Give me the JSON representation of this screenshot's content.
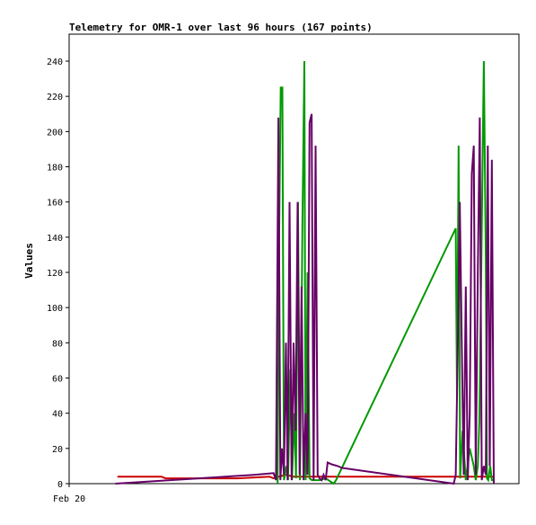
{
  "chart_data": {
    "type": "line",
    "title": "Telemetry for OMR-1 over last 96 hours (167 points)",
    "xlabel": "",
    "ylabel": "Values",
    "ylim": [
      0,
      255
    ],
    "xlim": [
      0,
      100
    ],
    "yticks": [
      0,
      20,
      40,
      60,
      80,
      100,
      120,
      140,
      160,
      180,
      200,
      220,
      240
    ],
    "xtick_labels": [
      {
        "x": 0,
        "label": "Feb 20"
      }
    ],
    "grid": false,
    "legend": "none",
    "series": [
      {
        "color": "#cc0000",
        "x": [
          6,
          17,
          18,
          36,
          44,
          45,
          48,
          50,
          52,
          55,
          62,
          70,
          80,
          85,
          90,
          95,
          100
        ],
        "y": [
          4,
          4,
          3,
          3,
          4,
          3,
          5,
          4,
          4,
          4,
          4,
          4,
          4,
          4,
          4,
          4,
          4
        ]
      },
      {
        "color": "#009900",
        "x": [
          46.0,
          46.4,
          46.8,
          47.2,
          47.6,
          48.2,
          48.6,
          49.2,
          49.6,
          50.2,
          50.6,
          51.1,
          51.6,
          52.2,
          52.7,
          53.0,
          53.5,
          54.0,
          54.6,
          55.5,
          56.5,
          58.0,
          60.0,
          60.6,
          90.5,
          90.8,
          91.2,
          91.6,
          92.2,
          93.0,
          94.0,
          95.0,
          95.5,
          96.0,
          96.4,
          97.0,
          97.5,
          98.0,
          98.3,
          98.6,
          99.1,
          99.5,
          100.0
        ],
        "y": [
          0,
          140,
          225,
          225,
          2,
          10,
          2,
          65,
          2,
          40,
          3,
          160,
          2,
          145,
          240,
          2,
          120,
          3,
          2,
          2,
          2,
          3,
          0,
          2,
          145,
          50,
          192,
          3,
          30,
          2,
          20,
          10,
          2,
          10,
          35,
          145,
          240,
          128,
          3,
          2,
          10,
          2,
          2
        ]
      },
      {
        "color": "#660066",
        "x": [
          5.5,
          40,
          45,
          45.6,
          46.2,
          46.7,
          47.1,
          47.6,
          48.1,
          48.5,
          49.0,
          49.5,
          50.0,
          50.5,
          51.0,
          51.5,
          52.0,
          52.5,
          53.0,
          53.5,
          54.0,
          54.5,
          55.0,
          55.5,
          56.0,
          56.5,
          57.0,
          57.5,
          58.0,
          58.5,
          59.5,
          61.0,
          62.0,
          90.0,
          90.5,
          91.0,
          91.5,
          92.0,
          92.5,
          93.0,
          93.5,
          94.0,
          94.5,
          95.0,
          95.5,
          96.0,
          96.5,
          97.0,
          97.5,
          98.0,
          98.5,
          99.0,
          99.5,
          100.0
        ],
        "y": [
          0,
          5,
          6,
          2,
          208,
          2,
          20,
          5,
          80,
          2,
          160,
          2,
          80,
          30,
          160,
          5,
          112,
          2,
          40,
          5,
          205,
          210,
          2,
          192,
          5,
          3,
          2,
          5,
          2,
          12,
          11,
          10,
          9,
          0,
          5,
          78,
          160,
          80,
          5,
          112,
          2,
          40,
          176,
          192,
          5,
          120,
          208,
          2,
          10,
          5,
          192,
          10,
          184,
          0
        ]
      }
    ]
  }
}
